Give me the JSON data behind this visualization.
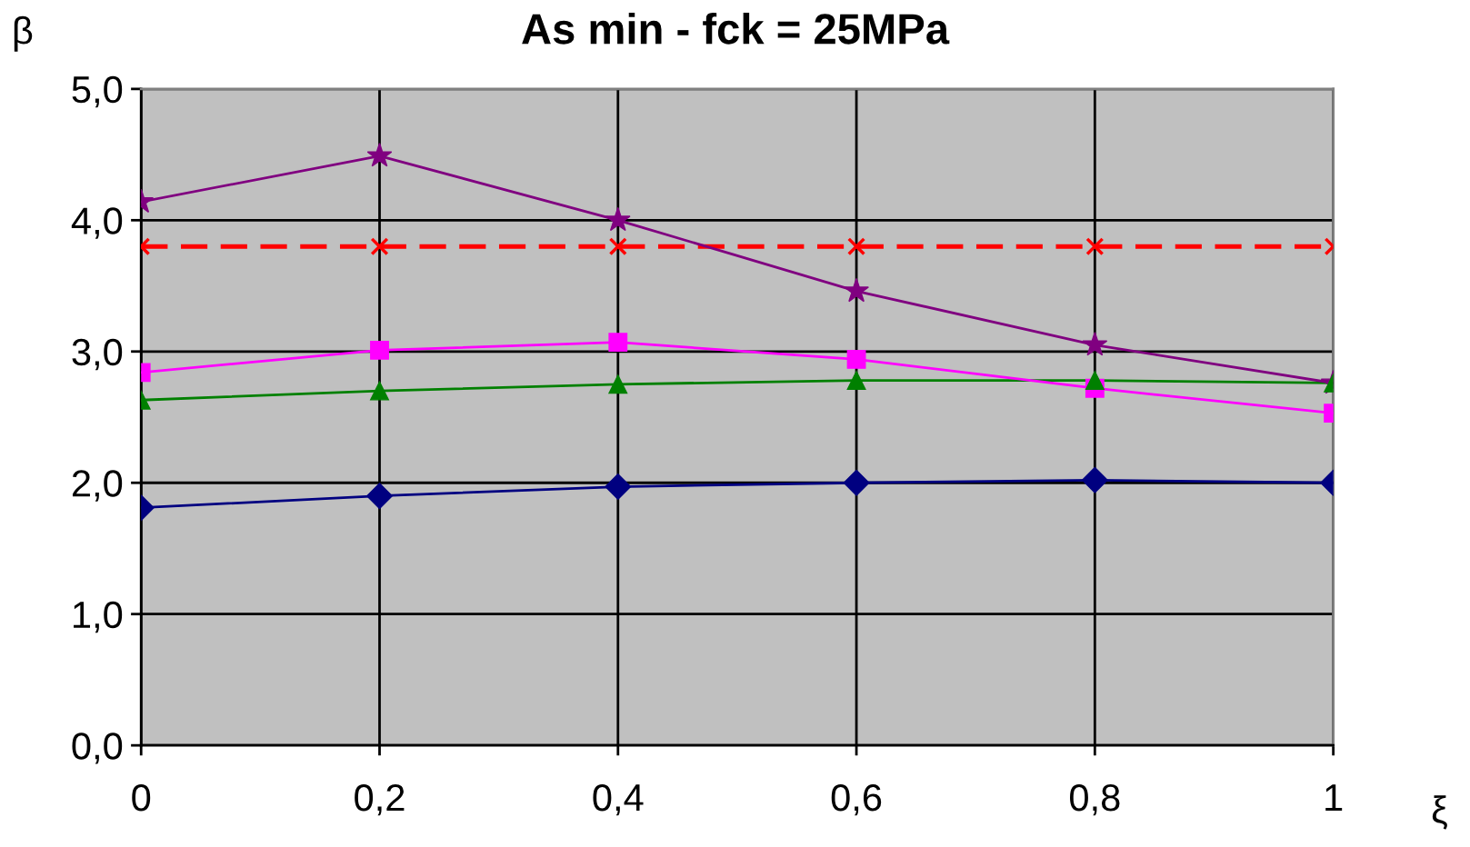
{
  "chart_data": {
    "type": "line",
    "title": "As min - fck = 25MPa",
    "xlabel": "ξ",
    "ylabel": "β",
    "x": [
      0,
      0.2,
      0.4,
      0.6,
      0.8,
      1
    ],
    "series": [
      {
        "color": "#000080",
        "marker": "diamond",
        "line_style": "solid",
        "values": [
          1.81,
          1.9,
          1.97,
          2.0,
          2.02,
          2.0
        ]
      },
      {
        "color": "#008000",
        "marker": "triangle",
        "line_style": "solid",
        "values": [
          2.63,
          2.7,
          2.75,
          2.78,
          2.78,
          2.76
        ]
      },
      {
        "color": "#ff00ff",
        "marker": "square",
        "line_style": "solid",
        "values": [
          2.84,
          3.01,
          3.07,
          2.94,
          2.72,
          2.53
        ]
      },
      {
        "color": "#ff0000",
        "marker": "cross",
        "line_style": "dashed",
        "values": [
          3.8,
          3.8,
          3.8,
          3.8,
          3.8,
          3.8
        ]
      },
      {
        "color": "#800080",
        "marker": "star",
        "line_style": "solid",
        "values": [
          4.14,
          4.49,
          4.0,
          3.46,
          3.05,
          2.76
        ]
      }
    ],
    "xlim": [
      0,
      1
    ],
    "xticks": [
      0,
      {
        "value": 0.2,
        "label": "0,2"
      },
      {
        "value": 0.4,
        "label": "0,4"
      },
      {
        "value": 0.6,
        "label": "0,6"
      },
      {
        "value": 0.8,
        "label": "0,8"
      },
      1
    ],
    "ylim": [
      0,
      5
    ],
    "yticks": [
      {
        "value": 0,
        "label": "0,0"
      },
      {
        "value": 1,
        "label": "1,0"
      },
      {
        "value": 2,
        "label": "2,0"
      },
      {
        "value": 3,
        "label": "3,0"
      },
      {
        "value": 4,
        "label": "4,0"
      },
      {
        "value": 5,
        "label": "5,0"
      }
    ],
    "grid": true,
    "legend": false
  }
}
